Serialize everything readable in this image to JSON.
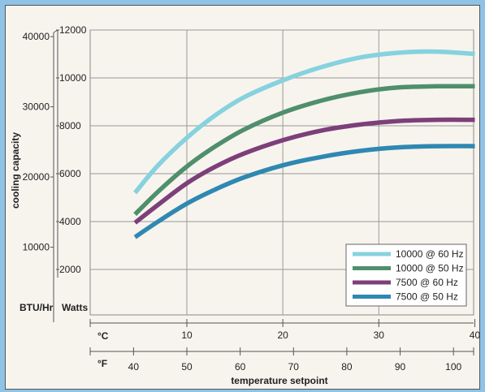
{
  "chart_data": {
    "type": "line",
    "ylabel": "cooling capacity",
    "xlabel": "temperature setpoint",
    "y_units": [
      "BTU/Hr",
      "Watts"
    ],
    "x_units": [
      "°C",
      "°F"
    ],
    "ylim_watts": [
      0,
      12000
    ],
    "xlim_c": [
      5,
      40
    ],
    "watts_ticks": [
      {
        "v": 12000,
        "label": "12000"
      },
      {
        "v": 10000,
        "label": "10000"
      },
      {
        "v": 8000,
        "label": "8000"
      },
      {
        "v": 6000,
        "label": "6000"
      },
      {
        "v": 4000,
        "label": "4000"
      },
      {
        "v": 2000,
        "label": "2000"
      }
    ],
    "btu_ticks": [
      {
        "v": 40000,
        "label": "40000"
      },
      {
        "v": 30000,
        "label": "30000"
      },
      {
        "v": 20000,
        "label": "20000"
      },
      {
        "v": 10000,
        "label": "10000"
      }
    ],
    "c_ticks": [
      {
        "v": 10,
        "label": "10"
      },
      {
        "v": 20,
        "label": "20"
      },
      {
        "v": 30,
        "label": "30"
      },
      {
        "v": 40,
        "label": "40"
      }
    ],
    "f_ticks": [
      {
        "v": 40,
        "label": "40"
      },
      {
        "v": 50,
        "label": "50"
      },
      {
        "v": 60,
        "label": "60"
      },
      {
        "v": 70,
        "label": "70"
      },
      {
        "v": 80,
        "label": "80"
      },
      {
        "v": 90,
        "label": "90"
      },
      {
        "v": 100,
        "label": "100"
      }
    ],
    "grid": true,
    "legend_position": "bottom-right",
    "series": [
      {
        "name": "10000 @ 60 Hz",
        "color": "#86d2de",
        "x": [
          4.6,
          7,
          10,
          13,
          16,
          20,
          24,
          28,
          32,
          36,
          40
        ],
        "y": [
          5200,
          6350,
          7500,
          8450,
          9200,
          9900,
          10450,
          10850,
          11050,
          11100,
          11000
        ]
      },
      {
        "name": "10000 @ 50 Hz",
        "color": "#4f8f6c",
        "x": [
          4.6,
          7,
          10,
          13,
          16,
          20,
          24,
          28,
          32,
          36,
          40
        ],
        "y": [
          4300,
          5250,
          6300,
          7150,
          7850,
          8550,
          9050,
          9400,
          9600,
          9650,
          9650
        ]
      },
      {
        "name": "7500 @ 60 Hz",
        "color": "#7d3f7a",
        "x": [
          4.6,
          7,
          10,
          13,
          16,
          20,
          24,
          28,
          32,
          36,
          40
        ],
        "y": [
          3950,
          4700,
          5600,
          6300,
          6850,
          7400,
          7800,
          8050,
          8200,
          8250,
          8250
        ]
      },
      {
        "name": "7500 @ 50 Hz",
        "color": "#2f88b2",
        "x": [
          4.6,
          7,
          10,
          13,
          16,
          20,
          24,
          28,
          32,
          36,
          40
        ],
        "y": [
          3350,
          4000,
          4750,
          5350,
          5850,
          6350,
          6700,
          6950,
          7100,
          7150,
          7150
        ]
      }
    ]
  }
}
